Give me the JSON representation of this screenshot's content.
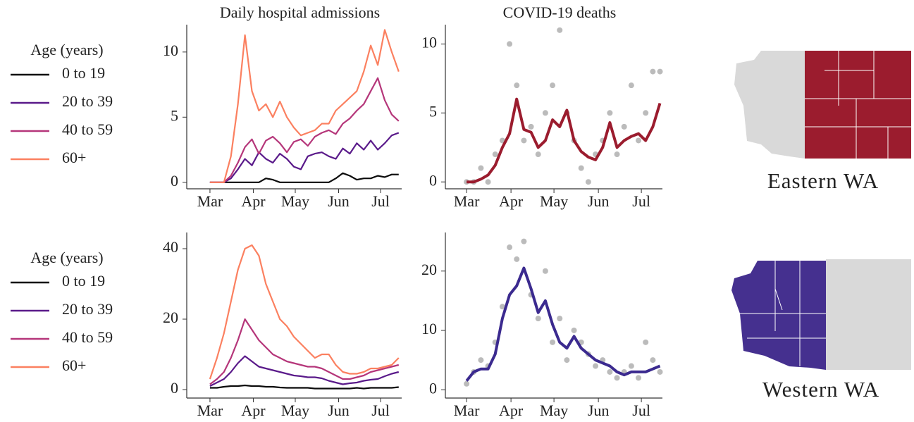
{
  "chart_data": [
    {
      "type": "line",
      "title": "Daily hospital admissions",
      "legend_title": "Age (years)",
      "x": [
        0,
        5,
        10,
        15,
        20,
        25,
        30,
        35,
        40,
        45,
        50,
        55,
        60,
        65,
        70,
        75,
        80,
        85,
        90,
        95,
        100,
        105,
        110,
        115,
        120,
        125,
        130,
        135
      ],
      "xlim": [
        -16.6,
        137.1
      ],
      "xticks": [
        {
          "value": 0,
          "label": "Mar"
        },
        {
          "value": 31,
          "label": "Apr"
        },
        {
          "value": 61,
          "label": "May"
        },
        {
          "value": 92,
          "label": "Jun"
        },
        {
          "value": 122,
          "label": "Jul"
        }
      ],
      "ylim": [
        -0.5,
        12.1
      ],
      "yticks": [
        0,
        5,
        10
      ],
      "series": [
        {
          "name": "0 to 19",
          "color": "#0b0b0b",
          "values": [
            0,
            0,
            0,
            0,
            0,
            0,
            0,
            0,
            0.3,
            0.2,
            0,
            0,
            0,
            0,
            0,
            0,
            0,
            0,
            0.3,
            0.7,
            0.5,
            0.2,
            0.3,
            0.3,
            0.5,
            0.4,
            0.6,
            0.6
          ]
        },
        {
          "name": "20 to 39",
          "color": "#5a1a8a",
          "values": [
            0,
            0,
            0,
            0.3,
            1,
            1.8,
            1.3,
            2.3,
            1.8,
            1.5,
            2.2,
            1.8,
            1.2,
            1.0,
            2.0,
            2.2,
            2.3,
            2.0,
            1.8,
            2.6,
            2.2,
            3.0,
            2.5,
            3.2,
            2.5,
            3.0,
            3.6,
            3.8
          ]
        },
        {
          "name": "40 to 59",
          "color": "#b5367a",
          "values": [
            0,
            0,
            0,
            0.5,
            1.5,
            2.7,
            3.3,
            2.2,
            3.2,
            3.5,
            3.0,
            2.3,
            3.1,
            3.3,
            2.8,
            3.5,
            3.8,
            4.0,
            3.7,
            4.5,
            4.9,
            5.5,
            6.0,
            7.0,
            8.0,
            6.3,
            5.2,
            4.7
          ]
        },
        {
          "name": "60+",
          "color": "#fb8060",
          "values": [
            0,
            0,
            0,
            2,
            6,
            11.3,
            7,
            5.5,
            6.0,
            5.0,
            6.2,
            5.0,
            4.2,
            3.6,
            3.8,
            4.0,
            4.5,
            4.5,
            5.5,
            6.0,
            6.5,
            7.0,
            8.5,
            10.5,
            9.0,
            11.7,
            10.0,
            8.5
          ]
        }
      ]
    },
    {
      "type": "line",
      "title": "COVID-19 deaths",
      "x": [
        0,
        5,
        10,
        15,
        20,
        25,
        30,
        35,
        40,
        45,
        50,
        55,
        60,
        65,
        70,
        75,
        80,
        85,
        90,
        95,
        100,
        105,
        110,
        115,
        120,
        125,
        130,
        135
      ],
      "xlim": [
        -14.8,
        136.7
      ],
      "xticks": [
        {
          "value": 0,
          "label": "Mar"
        },
        {
          "value": 31,
          "label": "Apr"
        },
        {
          "value": 61,
          "label": "May"
        },
        {
          "value": 92,
          "label": "Jun"
        },
        {
          "value": 122,
          "label": "Jul"
        }
      ],
      "ylim": [
        -0.5,
        11.4
      ],
      "yticks": [
        0,
        5,
        10
      ],
      "series": [
        {
          "color": "#9b1c2e",
          "values": [
            0,
            0,
            0.2,
            0.5,
            1.2,
            2.5,
            3.5,
            6.0,
            3.8,
            3.6,
            2.5,
            3.0,
            4.5,
            4.0,
            5.2,
            3.0,
            2.2,
            1.8,
            1.6,
            2.5,
            4.3,
            2.5,
            3.0,
            3.3,
            3.5,
            3.0,
            4.0,
            5.7
          ]
        }
      ],
      "points": {
        "color": "#555555",
        "values": [
          0,
          0,
          1,
          0,
          2,
          3,
          10,
          7,
          3,
          4,
          2,
          5,
          7,
          11,
          5,
          3,
          1,
          0,
          2,
          3,
          5,
          2,
          4,
          7,
          3,
          5,
          8,
          8
        ]
      }
    },
    {
      "type": "line",
      "legend_title": "Age (years)",
      "x": [
        0,
        5,
        10,
        15,
        20,
        25,
        30,
        35,
        40,
        45,
        50,
        55,
        60,
        65,
        70,
        75,
        80,
        85,
        90,
        95,
        100,
        105,
        110,
        115,
        120,
        125,
        130,
        135
      ],
      "xlim": [
        -16.6,
        137.1
      ],
      "xticks": [
        {
          "value": 0,
          "label": "Mar"
        },
        {
          "value": 31,
          "label": "Apr"
        },
        {
          "value": 61,
          "label": "May"
        },
        {
          "value": 92,
          "label": "Jun"
        },
        {
          "value": 122,
          "label": "Jul"
        }
      ],
      "ylim": [
        -2.4,
        44.6
      ],
      "yticks": [
        0,
        20,
        40
      ],
      "series": [
        {
          "name": "0 to 19",
          "color": "#0b0b0b",
          "values": [
            0.5,
            0.5,
            0.8,
            1,
            1,
            1.2,
            1,
            1,
            0.8,
            0.8,
            0.6,
            0.5,
            0.5,
            0.5,
            0.5,
            0.3,
            0.3,
            0.3,
            0.3,
            0.3,
            0.3,
            0.5,
            0.3,
            0.5,
            0.5,
            0.5,
            0.5,
            0.7
          ]
        },
        {
          "name": "20 to 39",
          "color": "#5a1a8a",
          "values": [
            1,
            2,
            3,
            5,
            7.5,
            9.5,
            8,
            6.5,
            6,
            5.5,
            5,
            4.5,
            4,
            3.8,
            3.5,
            3.5,
            3.2,
            2.5,
            2.0,
            1.5,
            1.8,
            2,
            2.5,
            2.8,
            3,
            3.8,
            4.5,
            5
          ]
        },
        {
          "name": "40 to 59",
          "color": "#b5367a",
          "values": [
            1.5,
            3,
            5,
            9,
            14,
            20,
            17,
            14,
            12,
            10,
            9,
            8,
            7.5,
            7,
            6.5,
            6.5,
            6,
            5,
            4,
            3,
            3,
            3.5,
            4,
            5,
            5.5,
            6,
            6.5,
            7
          ]
        },
        {
          "name": "60+",
          "color": "#fb8060",
          "values": [
            3,
            9,
            16,
            25,
            34,
            40,
            41,
            38,
            30,
            25,
            20,
            18,
            15,
            13,
            11,
            9,
            10,
            10,
            7,
            5,
            4.5,
            4.5,
            5,
            6,
            6,
            6.5,
            7,
            9
          ]
        }
      ]
    },
    {
      "type": "line",
      "x": [
        0,
        5,
        10,
        15,
        20,
        25,
        30,
        35,
        40,
        45,
        50,
        55,
        60,
        65,
        70,
        75,
        80,
        85,
        90,
        95,
        100,
        105,
        110,
        115,
        120,
        125,
        130,
        135
      ],
      "xlim": [
        -14.8,
        136.7
      ],
      "xticks": [
        {
          "value": 0,
          "label": "Mar"
        },
        {
          "value": 31,
          "label": "Apr"
        },
        {
          "value": 61,
          "label": "May"
        },
        {
          "value": 92,
          "label": "Jun"
        },
        {
          "value": 122,
          "label": "Jul"
        }
      ],
      "ylim": [
        -1.4,
        26.5
      ],
      "yticks": [
        0,
        10,
        20
      ],
      "series": [
        {
          "color": "#3b2a8f",
          "values": [
            1.5,
            3,
            3.5,
            3.5,
            6,
            12,
            16,
            17.5,
            20.5,
            17,
            13,
            15,
            11,
            8,
            7,
            9,
            7,
            6,
            5,
            4.5,
            4,
            3,
            2.5,
            3,
            3,
            3,
            3.5,
            4
          ]
        }
      ],
      "points": {
        "color": "#555555",
        "values": [
          1,
          3,
          5,
          4,
          8,
          14,
          24,
          22,
          25,
          16,
          12,
          20,
          8,
          12,
          5,
          10,
          8,
          6,
          4,
          5,
          3,
          2,
          3,
          4,
          2,
          8,
          5,
          3
        ]
      }
    }
  ],
  "maps": [
    {
      "label": "Eastern WA"
    },
    {
      "label": "Western WA"
    }
  ]
}
